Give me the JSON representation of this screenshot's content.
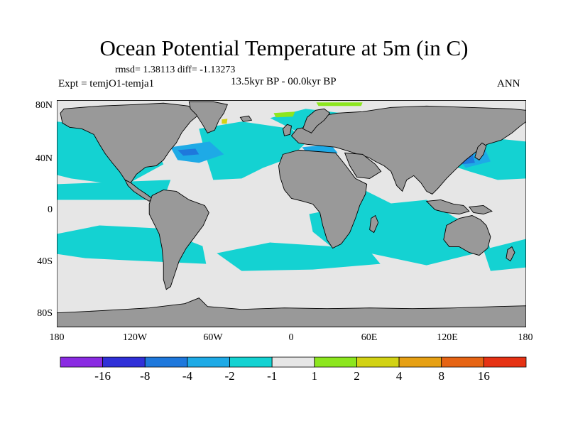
{
  "title": "Ocean Potential Temperature at 5m (in C)",
  "stats": "rmsd= 1.38113 diff= -1.13273",
  "experiment": "Expt = temjO1-temja1",
  "period": "13.5kyr BP - 00.0kyr BP",
  "season": "ANN",
  "latitude_labels": [
    "80N",
    "40N",
    "0",
    "40S",
    "80S"
  ],
  "longitude_labels": [
    "180",
    "120W",
    "60W",
    "0",
    "60E",
    "120E",
    "180"
  ],
  "colorbar": {
    "labels": [
      "-16",
      "-8",
      "-4",
      "-2",
      "-1",
      "1",
      "2",
      "4",
      "8",
      "16"
    ],
    "colors": [
      "#8a2be2",
      "#3030d8",
      "#1e78dc",
      "#1eaae6",
      "#14d2d2",
      "#e6e6e6",
      "#8ce61e",
      "#d2d214",
      "#e6a014",
      "#e66414",
      "#e63214"
    ]
  },
  "palette": {
    "land": "#999999",
    "coast": "#000000",
    "neutral": "#e6e6e6",
    "cool1": "#14d2d2",
    "cool2": "#1eaae6",
    "cool3": "#1e78dc",
    "warm1": "#8ce61e"
  }
}
